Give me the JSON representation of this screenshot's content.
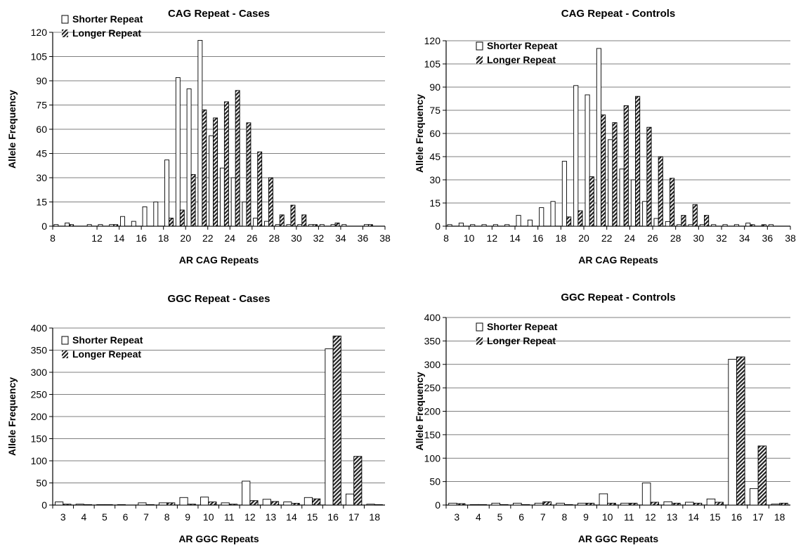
{
  "colors": {
    "shorter_fill": "#ffffff",
    "longer_fill": "#222222",
    "grid": "#555555"
  },
  "chart_data": [
    {
      "type": "bar",
      "title": "CAG Repeat - Cases",
      "xlabel": "AR CAG Repeats",
      "ylabel": "Allele Frequency",
      "ylim": [
        0,
        120
      ],
      "yticks": [
        0,
        15,
        30,
        45,
        60,
        75,
        90,
        105,
        120
      ],
      "xticks": [
        "8",
        "12",
        "14",
        "16",
        "18",
        "20",
        "22",
        "24",
        "26",
        "28",
        "30",
        "32",
        "34",
        "36",
        "38"
      ],
      "grid": true,
      "legend_position": "top-left",
      "categories": [
        8,
        9,
        10,
        11,
        12,
        13,
        14,
        15,
        16,
        17,
        18,
        19,
        20,
        21,
        22,
        23,
        24,
        25,
        26,
        27,
        28,
        29,
        30,
        31,
        32,
        33,
        34,
        35,
        36,
        37
      ],
      "series": [
        {
          "name": "Shorter Repeat",
          "pattern": "open",
          "values": [
            1,
            2,
            0,
            1,
            1,
            1,
            6,
            3,
            12,
            15,
            41,
            92,
            85,
            115,
            56,
            36,
            30,
            15,
            5,
            3,
            1,
            1,
            1,
            1,
            1,
            1,
            1,
            0,
            1,
            0
          ]
        },
        {
          "name": "Longer Repeat",
          "pattern": "hatched",
          "values": [
            0,
            1,
            0,
            0,
            0,
            1,
            0,
            0,
            0,
            0,
            5,
            10,
            32,
            72,
            67,
            77,
            84,
            64,
            46,
            30,
            7,
            13,
            7,
            1,
            0,
            2,
            0,
            0,
            1,
            0
          ]
        }
      ]
    },
    {
      "type": "bar",
      "title": "CAG Repeat - Controls",
      "xlabel": "AR CAG Repeats",
      "ylabel": "Allele Frequency",
      "ylim": [
        0,
        120
      ],
      "yticks": [
        0,
        15,
        30,
        45,
        60,
        75,
        90,
        105,
        120
      ],
      "xticks": [
        "8",
        "10",
        "12",
        "14",
        "16",
        "18",
        "20",
        "22",
        "24",
        "26",
        "28",
        "30",
        "32",
        "34",
        "36",
        "38"
      ],
      "grid": true,
      "legend_position": "top-left",
      "categories": [
        8,
        9,
        10,
        11,
        12,
        13,
        14,
        15,
        16,
        17,
        18,
        19,
        20,
        21,
        22,
        23,
        24,
        25,
        26,
        27,
        28,
        29,
        30,
        31,
        32,
        33,
        34,
        35,
        36,
        37
      ],
      "series": [
        {
          "name": "Shorter Repeat",
          "pattern": "open",
          "values": [
            1,
            2,
            1,
            1,
            1,
            1,
            7,
            4,
            12,
            16,
            42,
            91,
            85,
            115,
            56,
            37,
            30,
            16,
            5,
            3,
            1,
            1,
            1,
            1,
            1,
            1,
            2,
            0,
            1,
            0
          ]
        },
        {
          "name": "Longer Repeat",
          "pattern": "hatched",
          "values": [
            0,
            0,
            0,
            0,
            0,
            0,
            0,
            0,
            0,
            0,
            6,
            10,
            32,
            72,
            67,
            78,
            84,
            64,
            45,
            31,
            7,
            14,
            7,
            0,
            0,
            0,
            1,
            1,
            0,
            0
          ]
        }
      ]
    },
    {
      "type": "bar",
      "title": "GGC Repeat - Cases",
      "xlabel": "AR GGC Repeats",
      "ylabel": "Allele Frequency",
      "ylim": [
        0,
        400
      ],
      "yticks": [
        0,
        50,
        100,
        150,
        200,
        250,
        300,
        350,
        400
      ],
      "xticks": [
        "3",
        "4",
        "5",
        "6",
        "7",
        "8",
        "9",
        "10",
        "11",
        "12",
        "13",
        "14",
        "15",
        "16",
        "17",
        "18"
      ],
      "grid": true,
      "legend_position": "top-left",
      "categories": [
        "3",
        "4",
        "5",
        "6",
        "7",
        "8",
        "9",
        "10",
        "11",
        "12",
        "13",
        "14",
        "15",
        "16",
        "17",
        "18"
      ],
      "series": [
        {
          "name": "Shorter Repeat",
          "pattern": "open",
          "values": [
            7,
            2,
            1,
            1,
            5,
            5,
            17,
            18,
            5,
            54,
            13,
            7,
            17,
            353,
            25,
            2
          ]
        },
        {
          "name": "Longer Repeat",
          "pattern": "hatched",
          "values": [
            2,
            1,
            1,
            0,
            1,
            5,
            2,
            7,
            2,
            10,
            8,
            4,
            14,
            382,
            110,
            1
          ]
        }
      ]
    },
    {
      "type": "bar",
      "title": "GGC Repeat - Controls",
      "xlabel": "AR GGC Repeats",
      "ylabel": "Allele Frequency",
      "ylim": [
        0,
        400
      ],
      "yticks": [
        0,
        50,
        100,
        150,
        200,
        250,
        300,
        350,
        400
      ],
      "xticks": [
        "3",
        "4",
        "5",
        "6",
        "7",
        "8",
        "9",
        "10",
        "11",
        "12",
        "13",
        "14",
        "15",
        "16",
        "17",
        "18"
      ],
      "grid": true,
      "legend_position": "top-left",
      "categories": [
        "3",
        "4",
        "5",
        "6",
        "7",
        "8",
        "9",
        "10",
        "11",
        "12",
        "13",
        "14",
        "15",
        "16",
        "17",
        "18"
      ],
      "series": [
        {
          "name": "Shorter Repeat",
          "pattern": "open",
          "values": [
            4,
            1,
            4,
            4,
            4,
            4,
            4,
            24,
            4,
            47,
            7,
            6,
            13,
            311,
            35,
            2
          ]
        },
        {
          "name": "Longer Repeat",
          "pattern": "hatched",
          "values": [
            3,
            1,
            1,
            1,
            7,
            1,
            4,
            4,
            4,
            6,
            4,
            4,
            6,
            316,
            126,
            4
          ]
        }
      ]
    }
  ]
}
